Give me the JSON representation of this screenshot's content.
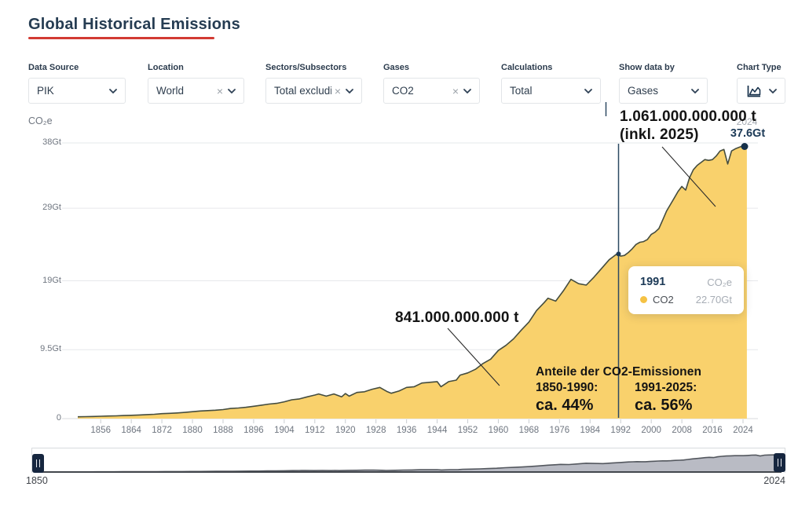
{
  "header": {
    "title": "Global Historical Emissions"
  },
  "filters": [
    {
      "id": "data-source",
      "label": "Data Source",
      "value": "PIK",
      "clearable": false,
      "icon": null
    },
    {
      "id": "location",
      "label": "Location",
      "value": "World",
      "clearable": true,
      "icon": null
    },
    {
      "id": "sectors",
      "label": "Sectors/Subsectors",
      "value": "Total excludi",
      "clearable": true,
      "icon": null
    },
    {
      "id": "gases",
      "label": "Gases",
      "value": "CO2",
      "clearable": true,
      "icon": null
    },
    {
      "id": "calculations",
      "label": "Calculations",
      "value": "Total",
      "clearable": false,
      "icon": null
    },
    {
      "id": "show-data-by",
      "label": "Show data by",
      "value": "Gases",
      "clearable": false,
      "icon": null
    },
    {
      "id": "chart-type",
      "label": "Chart Type",
      "value": "",
      "clearable": false,
      "icon": "area-chart-icon"
    }
  ],
  "chart_data": {
    "type": "area",
    "title": "Global Historical Emissions",
    "unit_label": "CO₂e",
    "xlabel": "",
    "ylabel": "CO₂e",
    "ylim": [
      0,
      38
    ],
    "xlim": [
      1850,
      2025
    ],
    "grid": true,
    "y_ticks": [
      {
        "label": "38Gt",
        "value": 38
      },
      {
        "label": "29Gt",
        "value": 29
      },
      {
        "label": "19Gt",
        "value": 19
      },
      {
        "label": "9.5Gt",
        "value": 9.5
      },
      {
        "label": "0",
        "value": 0
      }
    ],
    "x_ticks": [
      1856,
      1864,
      1872,
      1880,
      1888,
      1896,
      1904,
      1912,
      1920,
      1928,
      1936,
      1944,
      1952,
      1960,
      1968,
      1976,
      1984,
      1992,
      2000,
      2008,
      2016,
      2024
    ],
    "series": [
      {
        "name": "CO2",
        "unit": "Gt CO2e",
        "points": [
          [
            1850,
            0.25
          ],
          [
            1852,
            0.27
          ],
          [
            1854,
            0.29
          ],
          [
            1856,
            0.33
          ],
          [
            1858,
            0.36
          ],
          [
            1860,
            0.38
          ],
          [
            1862,
            0.42
          ],
          [
            1864,
            0.46
          ],
          [
            1866,
            0.5
          ],
          [
            1868,
            0.55
          ],
          [
            1870,
            0.6
          ],
          [
            1872,
            0.68
          ],
          [
            1874,
            0.72
          ],
          [
            1876,
            0.78
          ],
          [
            1878,
            0.85
          ],
          [
            1880,
            0.95
          ],
          [
            1882,
            1.05
          ],
          [
            1884,
            1.1
          ],
          [
            1886,
            1.16
          ],
          [
            1888,
            1.25
          ],
          [
            1890,
            1.4
          ],
          [
            1892,
            1.46
          ],
          [
            1894,
            1.56
          ],
          [
            1896,
            1.7
          ],
          [
            1898,
            1.85
          ],
          [
            1900,
            2.0
          ],
          [
            1902,
            2.1
          ],
          [
            1904,
            2.32
          ],
          [
            1906,
            2.6
          ],
          [
            1908,
            2.72
          ],
          [
            1910,
            3.0
          ],
          [
            1912,
            3.25
          ],
          [
            1913,
            3.4
          ],
          [
            1915,
            3.1
          ],
          [
            1917,
            3.4
          ],
          [
            1919,
            3.0
          ],
          [
            1920,
            3.45
          ],
          [
            1921,
            3.1
          ],
          [
            1923,
            3.6
          ],
          [
            1925,
            3.7
          ],
          [
            1927,
            4.05
          ],
          [
            1929,
            4.3
          ],
          [
            1931,
            3.7
          ],
          [
            1932,
            3.5
          ],
          [
            1934,
            3.8
          ],
          [
            1936,
            4.3
          ],
          [
            1938,
            4.4
          ],
          [
            1940,
            4.9
          ],
          [
            1942,
            5.0
          ],
          [
            1944,
            5.1
          ],
          [
            1945,
            4.4
          ],
          [
            1947,
            5.1
          ],
          [
            1949,
            5.3
          ],
          [
            1950,
            6.0
          ],
          [
            1952,
            6.3
          ],
          [
            1954,
            6.8
          ],
          [
            1956,
            7.6
          ],
          [
            1958,
            8.2
          ],
          [
            1960,
            9.4
          ],
          [
            1962,
            10.1
          ],
          [
            1964,
            11.0
          ],
          [
            1966,
            12.2
          ],
          [
            1968,
            13.3
          ],
          [
            1970,
            14.9
          ],
          [
            1972,
            16.0
          ],
          [
            1973,
            16.6
          ],
          [
            1975,
            16.2
          ],
          [
            1977,
            17.6
          ],
          [
            1979,
            19.2
          ],
          [
            1981,
            18.6
          ],
          [
            1983,
            18.4
          ],
          [
            1985,
            19.5
          ],
          [
            1987,
            20.7
          ],
          [
            1989,
            21.9
          ],
          [
            1990,
            22.3
          ],
          [
            1991,
            22.7
          ],
          [
            1992,
            22.4
          ],
          [
            1993,
            22.5
          ],
          [
            1994,
            22.9
          ],
          [
            1995,
            23.4
          ],
          [
            1996,
            24.0
          ],
          [
            1997,
            24.3
          ],
          [
            1998,
            24.4
          ],
          [
            1999,
            24.7
          ],
          [
            2000,
            25.4
          ],
          [
            2001,
            25.7
          ],
          [
            2002,
            26.2
          ],
          [
            2003,
            27.4
          ],
          [
            2004,
            28.6
          ],
          [
            2005,
            29.5
          ],
          [
            2006,
            30.4
          ],
          [
            2007,
            31.3
          ],
          [
            2008,
            32.0
          ],
          [
            2009,
            31.5
          ],
          [
            2010,
            33.2
          ],
          [
            2011,
            34.3
          ],
          [
            2012,
            34.9
          ],
          [
            2013,
            35.3
          ],
          [
            2014,
            35.7
          ],
          [
            2015,
            35.6
          ],
          [
            2016,
            35.7
          ],
          [
            2017,
            36.2
          ],
          [
            2018,
            36.9
          ],
          [
            2019,
            37.1
          ],
          [
            2020,
            35.1
          ],
          [
            2021,
            36.9
          ],
          [
            2022,
            37.2
          ],
          [
            2023,
            37.4
          ],
          [
            2024,
            37.6
          ],
          [
            2025,
            37.7
          ]
        ]
      }
    ],
    "hover_point": {
      "year": 1991,
      "value": 22.7
    },
    "end_point": {
      "label_year": "2024",
      "label_value": "37.6Gt",
      "year": 2024,
      "value": 37.6
    },
    "legend_position": "tooltip"
  },
  "tooltip": {
    "year": "1991",
    "unit": "CO₂e",
    "series": "CO2",
    "value": "22.70Gt"
  },
  "annotations": {
    "cumulative_1991_2025_line1": "1.061.000.000.000 t",
    "cumulative_1991_2025_line2": "(inkl. 2025)",
    "cumulative_1850_1990": "841.000.000.000 t",
    "share_title": "Anteile der CO2-Emissionen",
    "share_left_period": "1850-1990:",
    "share_left_value": "ca. 44%",
    "share_right_period": "1991-2025:",
    "share_right_value": "ca. 56%"
  },
  "timeline": {
    "start_label": "1850",
    "end_label": "2024"
  },
  "colors": {
    "area_fill": "#f9d16c",
    "area_stroke": "#454d3f",
    "navy": "#16304a",
    "hover_line": "#2e4a63",
    "red_underline": "#d23b33",
    "grid": "#e6e8eb",
    "axis_line": "#d8dbde",
    "axis_text": "#6f7680",
    "tooltip_dot": "#f5c244",
    "mini_fill": "#b9bbc4",
    "mini_stroke": "#53575e",
    "annotation_line": "#2a2a2a"
  }
}
